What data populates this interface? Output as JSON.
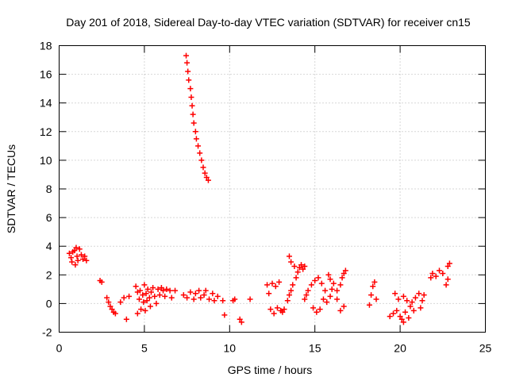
{
  "chart_data": {
    "type": "scatter",
    "title": "Day 201 of 2018, Sidereal Day-to-day VTEC variation (SDTVAR) for receiver cn15",
    "xlabel": "GPS time / hours",
    "ylabel": "SDTVAR / TECUs",
    "xlim": [
      0,
      25
    ],
    "ylim": [
      -2,
      18
    ],
    "xticks": [
      "0",
      "5",
      "10",
      "15",
      "20",
      "25"
    ],
    "yticks": [
      "-2",
      "0",
      "2",
      "4",
      "6",
      "8",
      "10",
      "12",
      "14",
      "16",
      "18"
    ],
    "grid": true,
    "marker": "+",
    "marker_color": "#ff0000",
    "series": [
      {
        "name": "sdtvar",
        "points": [
          [
            0.6,
            3.5
          ],
          [
            0.7,
            3.2
          ],
          [
            0.75,
            2.9
          ],
          [
            0.8,
            3.6
          ],
          [
            0.9,
            3.7
          ],
          [
            0.95,
            2.7
          ],
          [
            1.0,
            3.9
          ],
          [
            1.05,
            3.3
          ],
          [
            1.1,
            3.0
          ],
          [
            1.2,
            3.8
          ],
          [
            1.3,
            3.4
          ],
          [
            1.4,
            3.1
          ],
          [
            1.5,
            3.3
          ],
          [
            1.6,
            3.0
          ],
          [
            2.4,
            1.6
          ],
          [
            2.5,
            1.5
          ],
          [
            2.8,
            0.4
          ],
          [
            2.9,
            0.1
          ],
          [
            3.0,
            -0.2
          ],
          [
            3.1,
            -0.4
          ],
          [
            3.2,
            -0.6
          ],
          [
            3.3,
            -0.7
          ],
          [
            3.6,
            0.1
          ],
          [
            3.8,
            0.4
          ],
          [
            3.95,
            -1.1
          ],
          [
            4.1,
            0.5
          ],
          [
            4.5,
            1.2
          ],
          [
            4.6,
            0.8
          ],
          [
            4.6,
            -0.7
          ],
          [
            4.7,
            0.3
          ],
          [
            4.75,
            0.9
          ],
          [
            4.8,
            -0.4
          ],
          [
            4.9,
            0.6
          ],
          [
            4.95,
            0.1
          ],
          [
            5.0,
            1.3
          ],
          [
            5.05,
            -0.5
          ],
          [
            5.1,
            0.7
          ],
          [
            5.15,
            0.2
          ],
          [
            5.2,
            1.0
          ],
          [
            5.3,
            0.4
          ],
          [
            5.35,
            -0.2
          ],
          [
            5.4,
            0.8
          ],
          [
            5.5,
            1.1
          ],
          [
            5.6,
            0.5
          ],
          [
            5.7,
            0.0
          ],
          [
            5.8,
            1.0
          ],
          [
            5.9,
            0.6
          ],
          [
            6.0,
            1.1
          ],
          [
            6.1,
            0.9
          ],
          [
            6.2,
            0.5
          ],
          [
            6.3,
            1.0
          ],
          [
            6.5,
            0.9
          ],
          [
            6.6,
            0.4
          ],
          [
            6.8,
            0.9
          ],
          [
            7.3,
            0.6
          ],
          [
            7.5,
            0.4
          ],
          [
            7.7,
            0.8
          ],
          [
            7.9,
            0.3
          ],
          [
            8.0,
            0.7
          ],
          [
            8.2,
            0.9
          ],
          [
            8.3,
            0.4
          ],
          [
            8.5,
            0.6
          ],
          [
            8.6,
            0.9
          ],
          [
            8.8,
            0.3
          ],
          [
            9.0,
            0.7
          ],
          [
            9.1,
            0.2
          ],
          [
            9.3,
            0.5
          ],
          [
            9.6,
            0.2
          ],
          [
            9.7,
            -0.8
          ],
          [
            10.2,
            0.2
          ],
          [
            10.3,
            0.3
          ],
          [
            10.6,
            -1.1
          ],
          [
            10.7,
            -1.3
          ],
          [
            11.2,
            0.3
          ],
          [
            7.45,
            17.3
          ],
          [
            7.5,
            16.8
          ],
          [
            7.55,
            16.2
          ],
          [
            7.6,
            15.6
          ],
          [
            7.7,
            15.0
          ],
          [
            7.75,
            14.4
          ],
          [
            7.8,
            13.8
          ],
          [
            7.85,
            13.2
          ],
          [
            7.9,
            12.6
          ],
          [
            8.0,
            12.0
          ],
          [
            8.05,
            11.5
          ],
          [
            8.15,
            11.0
          ],
          [
            8.25,
            10.5
          ],
          [
            8.35,
            10.0
          ],
          [
            8.45,
            9.5
          ],
          [
            8.55,
            9.1
          ],
          [
            8.65,
            8.8
          ],
          [
            8.75,
            8.6
          ],
          [
            12.2,
            1.3
          ],
          [
            12.3,
            0.7
          ],
          [
            12.4,
            -0.4
          ],
          [
            12.5,
            1.4
          ],
          [
            12.6,
            -0.7
          ],
          [
            12.7,
            1.2
          ],
          [
            12.8,
            -0.3
          ],
          [
            12.9,
            1.5
          ],
          [
            13.0,
            -0.5
          ],
          [
            13.1,
            -0.6
          ],
          [
            13.2,
            -0.4
          ],
          [
            13.4,
            0.2
          ],
          [
            13.5,
            0.6
          ],
          [
            13.5,
            3.3
          ],
          [
            13.6,
            0.9
          ],
          [
            13.6,
            2.9
          ],
          [
            13.7,
            1.3
          ],
          [
            13.8,
            2.6
          ],
          [
            13.9,
            1.8
          ],
          [
            14.0,
            2.2
          ],
          [
            14.1,
            2.5
          ],
          [
            14.2,
            2.7
          ],
          [
            14.3,
            2.4
          ],
          [
            14.4,
            2.6
          ],
          [
            14.4,
            0.3
          ],
          [
            14.5,
            0.6
          ],
          [
            14.6,
            0.9
          ],
          [
            14.8,
            1.3
          ],
          [
            14.9,
            -0.3
          ],
          [
            15.0,
            1.6
          ],
          [
            15.1,
            -0.6
          ],
          [
            15.2,
            1.8
          ],
          [
            15.3,
            -0.4
          ],
          [
            15.4,
            1.4
          ],
          [
            15.5,
            0.3
          ],
          [
            15.6,
            0.9
          ],
          [
            15.7,
            0.1
          ],
          [
            15.8,
            2.0
          ],
          [
            15.9,
            0.5
          ],
          [
            15.9,
            1.7
          ],
          [
            16.0,
            1.0
          ],
          [
            16.1,
            1.4
          ],
          [
            16.3,
            0.3
          ],
          [
            16.3,
            0.9
          ],
          [
            16.5,
            1.3
          ],
          [
            16.5,
            -0.5
          ],
          [
            16.6,
            1.8
          ],
          [
            16.7,
            2.1
          ],
          [
            16.7,
            -0.2
          ],
          [
            16.8,
            2.3
          ],
          [
            18.2,
            -0.1
          ],
          [
            18.3,
            0.6
          ],
          [
            18.4,
            1.2
          ],
          [
            18.5,
            1.5
          ],
          [
            18.6,
            0.3
          ],
          [
            19.4,
            -0.9
          ],
          [
            19.6,
            -0.7
          ],
          [
            19.7,
            0.7
          ],
          [
            19.8,
            -0.5
          ],
          [
            19.9,
            0.3
          ],
          [
            20.0,
            -0.9
          ],
          [
            20.1,
            -1.1
          ],
          [
            20.2,
            0.5
          ],
          [
            20.2,
            -1.3
          ],
          [
            20.3,
            -0.6
          ],
          [
            20.4,
            0.2
          ],
          [
            20.5,
            -1.0
          ],
          [
            20.6,
            -0.2
          ],
          [
            20.7,
            0.1
          ],
          [
            20.8,
            -0.5
          ],
          [
            20.9,
            0.4
          ],
          [
            21.1,
            0.7
          ],
          [
            21.2,
            -0.3
          ],
          [
            21.3,
            0.2
          ],
          [
            21.4,
            0.6
          ],
          [
            21.8,
            1.8
          ],
          [
            21.9,
            2.1
          ],
          [
            22.1,
            1.9
          ],
          [
            22.3,
            2.3
          ],
          [
            22.5,
            2.1
          ],
          [
            22.7,
            1.3
          ],
          [
            22.8,
            2.6
          ],
          [
            22.8,
            1.7
          ],
          [
            22.9,
            2.8
          ]
        ]
      }
    ]
  }
}
